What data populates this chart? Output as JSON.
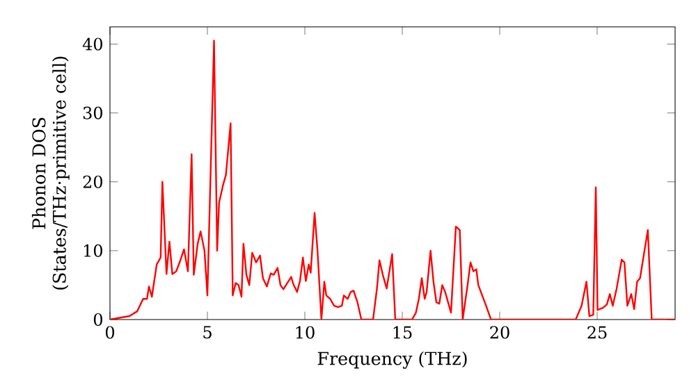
{
  "chart_data": {
    "type": "line",
    "xlabel": "Frequency (THz)",
    "ylabel": "Phonon DOS\n(States/THz·primitive cell)",
    "xlim": [
      0,
      29
    ],
    "ylim": [
      0,
      42.5
    ],
    "xticks": [
      0,
      5,
      10,
      15,
      20,
      25
    ],
    "yticks": [
      0,
      10,
      20,
      30,
      40
    ],
    "grid": false,
    "marker": "none",
    "line_style": "solid",
    "series": [
      {
        "color": "#ff0000",
        "x": [
          0,
          1.0,
          1.4,
          1.7,
          1.9,
          2.0,
          2.15,
          2.4,
          2.6,
          2.69,
          2.9,
          3.05,
          3.2,
          3.4,
          3.6,
          3.8,
          4.0,
          4.19,
          4.3,
          4.5,
          4.65,
          4.85,
          5.0,
          5.34,
          5.5,
          5.6,
          5.8,
          5.95,
          6.19,
          6.3,
          6.45,
          6.6,
          6.75,
          6.85,
          7.0,
          7.15,
          7.3,
          7.5,
          7.7,
          7.85,
          8.05,
          8.25,
          8.4,
          8.6,
          8.75,
          8.9,
          9.1,
          9.3,
          9.4,
          9.6,
          9.75,
          9.9,
          10.05,
          10.2,
          10.3,
          10.5,
          10.65,
          10.85,
          11.0,
          11.1,
          11.3,
          11.5,
          11.7,
          11.9,
          12.0,
          12.2,
          12.35,
          12.5,
          12.7,
          12.9,
          13.5,
          13.7,
          13.83,
          14.0,
          14.2,
          14.48,
          14.64,
          15.5,
          15.7,
          15.85,
          16.0,
          16.15,
          16.25,
          16.45,
          16.6,
          16.75,
          16.9,
          17.05,
          17.2,
          17.5,
          17.75,
          17.95,
          18.1,
          18.35,
          18.5,
          18.65,
          18.8,
          18.9,
          19.3,
          19.55,
          23.9,
          24.2,
          24.45,
          24.6,
          24.8,
          24.93,
          25.02,
          25.3,
          25.5,
          25.65,
          25.8,
          26.0,
          26.26,
          26.4,
          26.55,
          26.75,
          26.9,
          27.05,
          27.2,
          27.6,
          27.8,
          29
        ],
        "values": [
          0,
          0.5,
          1.2,
          3,
          3,
          4.8,
          3.3,
          8,
          9,
          20,
          6.6,
          11.3,
          6.6,
          7,
          8.5,
          10.2,
          7,
          24,
          6.5,
          11,
          12.8,
          10,
          3.5,
          40.5,
          10,
          17,
          19.5,
          21,
          28.5,
          3.5,
          5.3,
          5,
          3.3,
          11,
          6.5,
          5,
          9.7,
          8.3,
          9.3,
          6,
          4.8,
          6.7,
          6.5,
          7.5,
          5,
          4.4,
          5.3,
          6.2,
          5.2,
          4,
          5.6,
          9,
          5.6,
          8,
          6.8,
          15.5,
          10,
          0,
          5.5,
          3.5,
          3,
          2,
          1.8,
          2,
          3.5,
          3,
          4,
          4.2,
          2.5,
          0,
          0,
          4.5,
          8.6,
          6.5,
          4.5,
          9.5,
          0,
          0,
          1,
          3,
          6,
          3,
          4,
          10,
          5.5,
          2.5,
          2.3,
          5,
          4,
          1,
          13.5,
          13,
          0,
          5,
          8.3,
          7,
          7.3,
          5,
          2,
          0,
          0,
          2,
          5.5,
          0.5,
          0.7,
          19.2,
          1.4,
          1.7,
          2.2,
          3.7,
          2,
          4.5,
          8.7,
          8.3,
          2,
          3.7,
          1.5,
          5.5,
          6,
          13,
          0,
          0
        ]
      }
    ]
  }
}
